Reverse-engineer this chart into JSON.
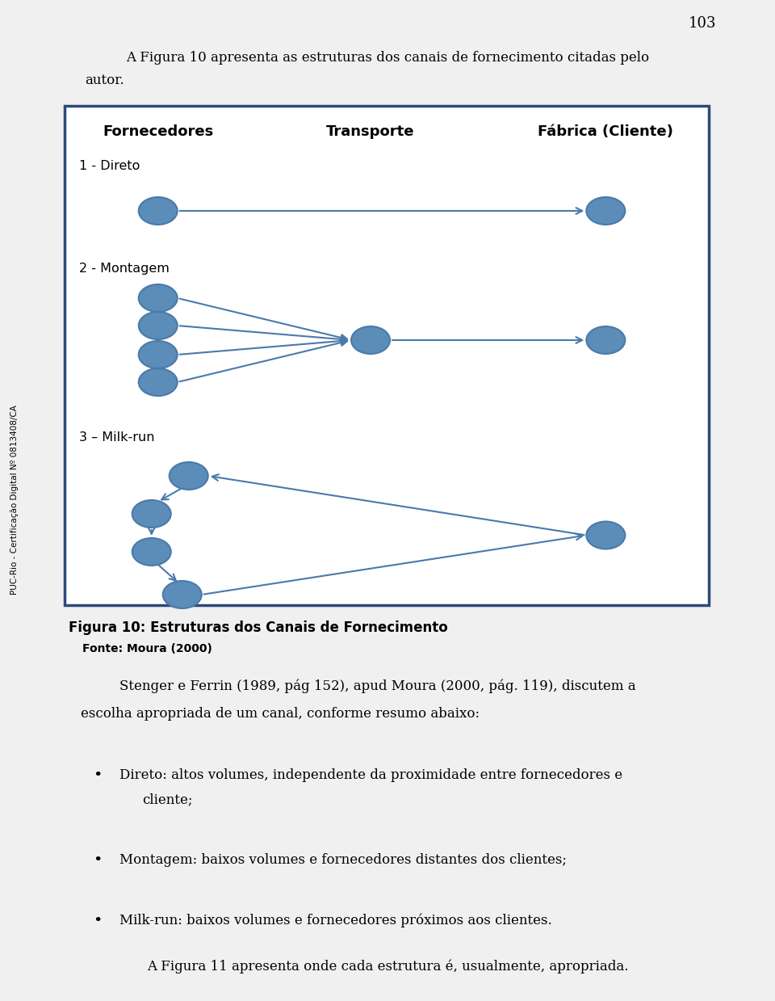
{
  "page_number": "103",
  "col_headers": [
    "Fornecedores",
    "Transporte",
    "Fábrica (Cliente)"
  ],
  "node_color": "#5b8db8",
  "node_edge_color": "#4a7aaa",
  "arrow_color": "#4a7aaa",
  "box_border_color": "#2a4a7a",
  "section_label_1": "1 - Direto",
  "section_label_2": "2 - Montagem",
  "section_label_3": "3 – Milk-run",
  "figure_title": "Figura 10: Estruturas dos Canais de Fornecimento",
  "figure_source": "Fonte: Moura (2000)",
  "body_indent": "    Stenger e Ferrin (1989, pág 152), apud Moura (2000, pág. 119), discutem a",
  "body_line2": "escolha apropriada de um canal, conforme resumo abaixo:",
  "bullet_1a": "Direto: altos volumes, independente da proximidade entre fornecedores e",
  "bullet_1b": "cliente;",
  "bullet_2": "Montagem: baixos volumes e fornecedores distantes dos clientes;",
  "bullet_3": "Milk-run: baixos volumes e fornecedores próximos aos clientes.",
  "footer": "A Figura 11 apresenta onde cada estrutura é, usualmente, apropriada.",
  "background": "#f0f0f0",
  "page_bg": "#f0f0f0"
}
